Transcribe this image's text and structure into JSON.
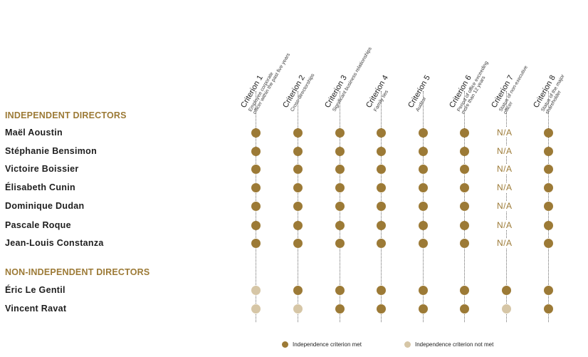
{
  "criteria": [
    {
      "title": "Criterion 1",
      "subtitle": [
        "Employee corporate",
        "officer within the past five years"
      ]
    },
    {
      "title": "Criterion 2",
      "subtitle": [
        "Cross-directorships"
      ]
    },
    {
      "title": "Criterion 3",
      "subtitle": [
        "Significant business relationships"
      ]
    },
    {
      "title": "Criterion 4",
      "subtitle": [
        "Family ties"
      ]
    },
    {
      "title": "Criterion 5",
      "subtitle": [
        "Auditor"
      ]
    },
    {
      "title": "Criterion 6",
      "subtitle": [
        "Period of office exceeding",
        "more than 12 years"
      ]
    },
    {
      "title": "Criterion 7",
      "subtitle": [
        "Status of non-executive",
        "officer"
      ]
    },
    {
      "title": "Criterion 8",
      "subtitle": [
        "Status of the major",
        "shareholder"
      ]
    }
  ],
  "sections": [
    {
      "title": "INDEPENDENT DIRECTORS",
      "directors": [
        {
          "name": "Maël Aoustin",
          "status": [
            "met",
            "met",
            "met",
            "met",
            "met",
            "met",
            "N/A",
            "met"
          ]
        },
        {
          "name": "Stéphanie Bensimon",
          "status": [
            "met",
            "met",
            "met",
            "met",
            "met",
            "met",
            "N/A",
            "met"
          ]
        },
        {
          "name": "Victoire Boissier",
          "status": [
            "met",
            "met",
            "met",
            "met",
            "met",
            "met",
            "N/A",
            "met"
          ]
        },
        {
          "name": "Élisabeth Cunin",
          "status": [
            "met",
            "met",
            "met",
            "met",
            "met",
            "met",
            "N/A",
            "met"
          ]
        },
        {
          "name": "Dominique Dudan",
          "status": [
            "met",
            "met",
            "met",
            "met",
            "met",
            "met",
            "N/A",
            "met"
          ]
        },
        {
          "name": "Pascale Roque",
          "status": [
            "met",
            "met",
            "met",
            "met",
            "met",
            "met",
            "N/A",
            "met"
          ]
        },
        {
          "name": "Jean-Louis Constanza",
          "status": [
            "met",
            "met",
            "met",
            "met",
            "met",
            "met",
            "N/A",
            "met"
          ]
        }
      ]
    },
    {
      "title": "NON-INDEPENDENT DIRECTORS",
      "directors": [
        {
          "name": "Éric Le Gentil",
          "status": [
            "not_met",
            "met",
            "met",
            "met",
            "met",
            "met",
            "met",
            "met"
          ]
        },
        {
          "name": "Vincent Ravat",
          "status": [
            "not_met",
            "not_met",
            "met",
            "met",
            "met",
            "met",
            "not_met",
            "met"
          ]
        }
      ]
    }
  ],
  "legend": {
    "met_label": "Independence criterion met",
    "not_met_label": "Independence criterion not met"
  },
  "colors": {
    "met": "#9c7a36",
    "not_met": "#d6c6a6",
    "section_title": "#9c7a36"
  }
}
